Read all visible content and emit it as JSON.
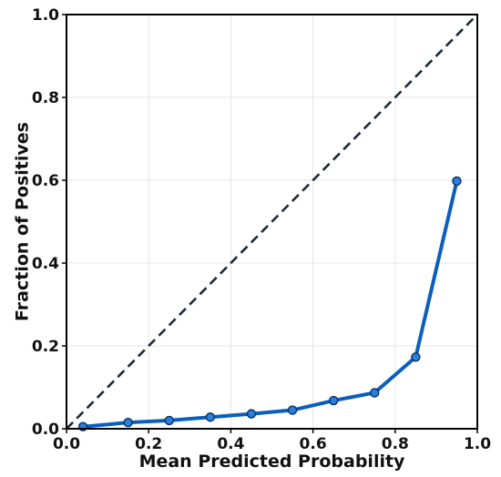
{
  "chart_data": {
    "type": "line",
    "title": "",
    "xlabel": "Mean Predicted Probability",
    "ylabel": "Fraction of Positives",
    "xlim": [
      0.0,
      1.0
    ],
    "ylim": [
      0.0,
      1.0
    ],
    "x_ticks": [
      "0.0",
      "0.2",
      "0.4",
      "0.6",
      "0.8",
      "1.0"
    ],
    "y_ticks": [
      "0.0",
      "0.2",
      "0.4",
      "0.6",
      "0.8",
      "1.0"
    ],
    "grid": true,
    "legend": "none",
    "reference_line": {
      "style": "dashed",
      "color": "#1b2a3a",
      "x": [
        0.0,
        1.0
      ],
      "y": [
        0.0,
        1.0
      ]
    },
    "series": [
      {
        "color": "#0a5fbd",
        "marker": "circle",
        "x": [
          0.04,
          0.15,
          0.25,
          0.35,
          0.45,
          0.55,
          0.65,
          0.75,
          0.85,
          0.95
        ],
        "y": [
          0.005,
          0.015,
          0.02,
          0.028,
          0.036,
          0.045,
          0.068,
          0.087,
          0.173,
          0.598
        ]
      }
    ]
  }
}
